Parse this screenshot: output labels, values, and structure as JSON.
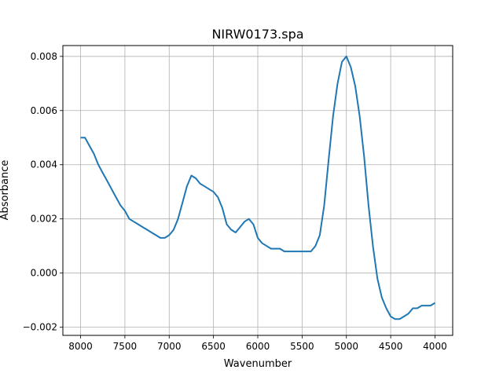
{
  "chart_data": {
    "type": "line",
    "title": "NIRW0173.spa",
    "xlabel": "Wavenumber",
    "ylabel": "Absorbance",
    "xlim": [
      8200,
      3800
    ],
    "ylim": [
      -0.0023,
      0.0084
    ],
    "x_reversed": true,
    "grid": true,
    "x_ticks": [
      8000,
      7500,
      7000,
      6500,
      6000,
      5500,
      5000,
      4500,
      4000
    ],
    "x_tick_labels": [
      "8000",
      "7500",
      "7000",
      "6500",
      "6000",
      "5500",
      "5000",
      "4500",
      "4000"
    ],
    "y_ticks": [
      -0.002,
      0.0,
      0.002,
      0.004,
      0.006,
      0.008
    ],
    "y_tick_labels": [
      "−0.002",
      "0.000",
      "0.002",
      "0.004",
      "0.006",
      "0.008"
    ],
    "series": [
      {
        "color": "#1f77b4",
        "x": [
          8000,
          7950,
          7900,
          7850,
          7800,
          7750,
          7700,
          7650,
          7600,
          7550,
          7500,
          7450,
          7400,
          7350,
          7300,
          7250,
          7200,
          7150,
          7100,
          7050,
          7000,
          6950,
          6900,
          6850,
          6800,
          6750,
          6700,
          6650,
          6600,
          6550,
          6500,
          6450,
          6400,
          6350,
          6300,
          6250,
          6200,
          6150,
          6100,
          6050,
          6000,
          5950,
          5900,
          5850,
          5800,
          5750,
          5700,
          5650,
          5600,
          5550,
          5500,
          5450,
          5400,
          5350,
          5300,
          5250,
          5200,
          5150,
          5100,
          5050,
          5000,
          4950,
          4900,
          4850,
          4800,
          4750,
          4700,
          4650,
          4600,
          4550,
          4500,
          4450,
          4400,
          4350,
          4300,
          4250,
          4200,
          4150,
          4100,
          4050,
          4000
        ],
        "y": [
          0.005,
          0.005,
          0.0047,
          0.0044,
          0.004,
          0.0037,
          0.0034,
          0.0031,
          0.0028,
          0.0025,
          0.0023,
          0.002,
          0.0019,
          0.0018,
          0.0017,
          0.0016,
          0.0015,
          0.0014,
          0.0013,
          0.0013,
          0.0014,
          0.0016,
          0.002,
          0.0026,
          0.0032,
          0.0036,
          0.0035,
          0.0033,
          0.0032,
          0.0031,
          0.003,
          0.0028,
          0.0024,
          0.0018,
          0.0016,
          0.0015,
          0.0017,
          0.0019,
          0.002,
          0.0018,
          0.0013,
          0.0011,
          0.001,
          0.0009,
          0.0009,
          0.0009,
          0.0008,
          0.0008,
          0.0008,
          0.0008,
          0.0008,
          0.0008,
          0.0008,
          0.001,
          0.0014,
          0.0025,
          0.0042,
          0.0058,
          0.007,
          0.0078,
          0.008,
          0.0076,
          0.0069,
          0.0058,
          0.0043,
          0.0025,
          0.001,
          -0.0002,
          -0.0009,
          -0.0013,
          -0.0016,
          -0.0017,
          -0.0017,
          -0.0016,
          -0.0015,
          -0.0013,
          -0.0013,
          -0.0012,
          -0.0012,
          -0.0012,
          -0.0011
        ]
      }
    ]
  }
}
